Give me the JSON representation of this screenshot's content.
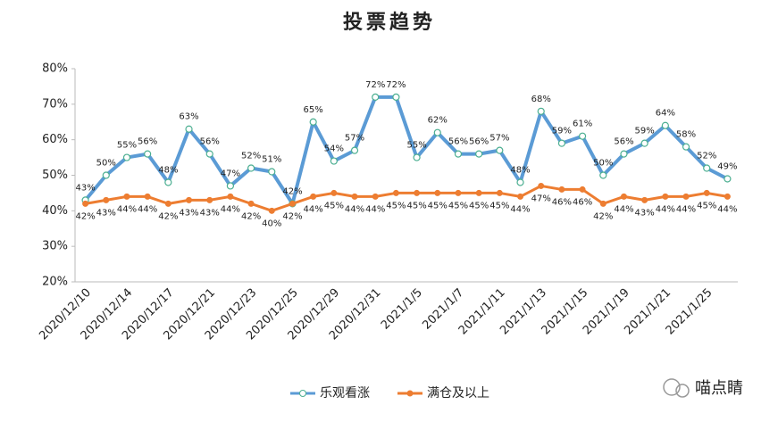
{
  "chart_data": {
    "type": "line",
    "title": "投票趋势",
    "categories": [
      "2020/12/10",
      null,
      "2020/12/14",
      null,
      "2020/12/17",
      null,
      "2020/12/21",
      null,
      "2020/12/23",
      null,
      "2020/12/25",
      null,
      "2020/12/29",
      null,
      "2020/12/31",
      null,
      "2021/1/5",
      null,
      "2021/1/7",
      null,
      "2021/1/11",
      null,
      "2021/1/13",
      null,
      "2021/1/15",
      null,
      "2021/1/19",
      null,
      "2021/1/21",
      null,
      "2021/1/25",
      null
    ],
    "series": [
      {
        "name": "乐观看涨",
        "color": "#5b9bd5",
        "marker_stroke": "#4caf91",
        "values": [
          43,
          50,
          55,
          56,
          48,
          63,
          56,
          47,
          52,
          51,
          42,
          65,
          54,
          57,
          72,
          72,
          55,
          62,
          56,
          56,
          57,
          48,
          68,
          59,
          61,
          50,
          56,
          59,
          64,
          58,
          52,
          49
        ],
        "value_labels": [
          "43%",
          "50%",
          "55%",
          "56%",
          "48%",
          "63%",
          "56%",
          "47%",
          "52%",
          "51%",
          "42%",
          "65%",
          "54%",
          "57%",
          "72%",
          "72%",
          "55%",
          "62%",
          "56%",
          "56%",
          "57%",
          "48%",
          "68%",
          "59%",
          "61%",
          "50%",
          "56%",
          "59%",
          "64%",
          "58%",
          "52%",
          "49%"
        ]
      },
      {
        "name": "满仓及以上",
        "color": "#ed7d31",
        "values": [
          42,
          43,
          44,
          44,
          42,
          43,
          43,
          44,
          42,
          40,
          42,
          44,
          45,
          44,
          44,
          45,
          45,
          45,
          45,
          45,
          45,
          44,
          47,
          46,
          46,
          42,
          44,
          43,
          44,
          44,
          45,
          44
        ],
        "value_labels": [
          "42%",
          "43%",
          "44%",
          "44%",
          "42%",
          "43%",
          "43%",
          "44%",
          "42%",
          "40%",
          "42%",
          "44%",
          "45%",
          "44%",
          "44%",
          "45%",
          "45%",
          "45%",
          "45%",
          "45%",
          "45%",
          "44%",
          "47%",
          "46%",
          "46%",
          "42%",
          "44%",
          "43%",
          "44%",
          "44%",
          "45%",
          "44%"
        ]
      }
    ],
    "ylim": [
      20,
      80
    ],
    "yticks": [
      {
        "value": 20,
        "label": "20%"
      },
      {
        "value": 30,
        "label": "30%"
      },
      {
        "value": 40,
        "label": "40%"
      },
      {
        "value": 50,
        "label": "50%"
      },
      {
        "value": 60,
        "label": "60%"
      },
      {
        "value": 70,
        "label": "70%"
      },
      {
        "value": 80,
        "label": "80%"
      }
    ],
    "legend": "bottom",
    "watermark": "喵点睛"
  }
}
